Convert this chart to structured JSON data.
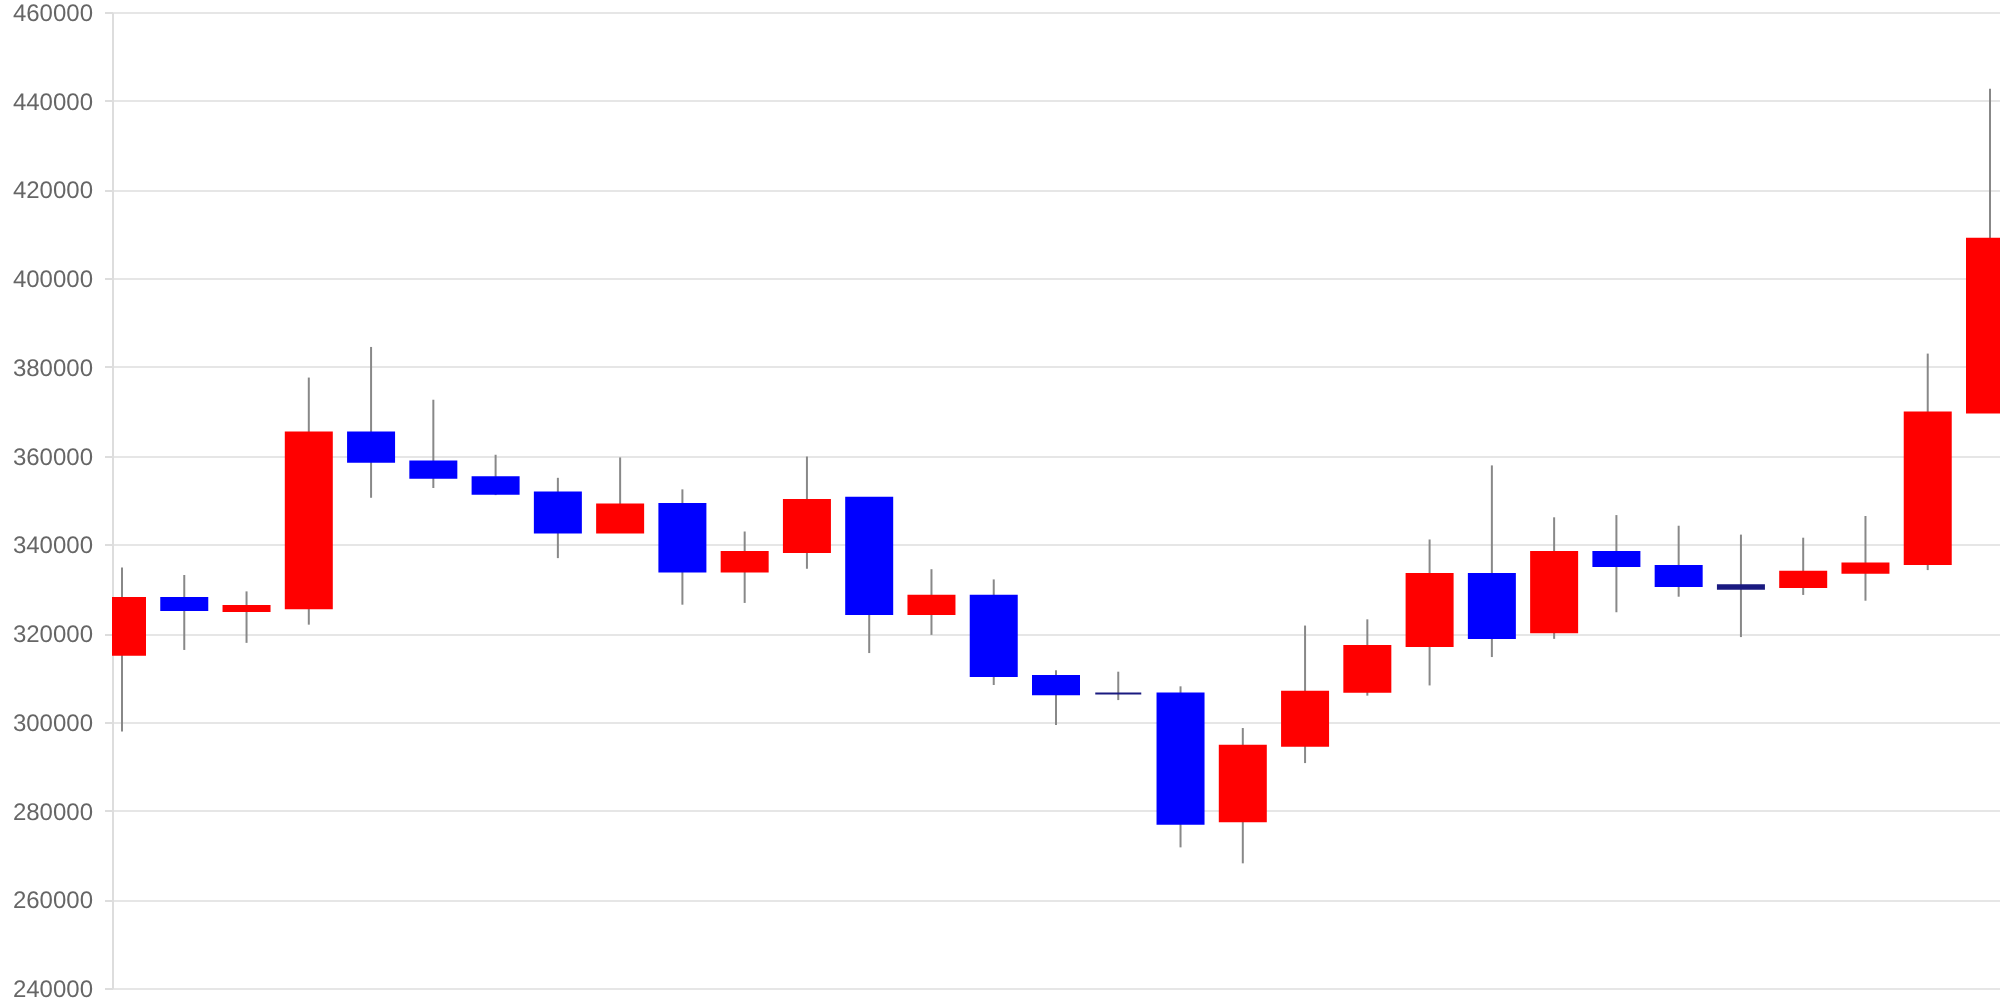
{
  "chart_data": {
    "type": "candlestick",
    "categories": [
      null,
      null,
      null,
      null,
      null,
      null,
      null,
      null,
      null,
      null,
      null,
      null,
      null,
      null,
      null,
      null,
      null,
      null,
      null,
      null,
      null,
      null,
      null,
      null,
      null,
      null,
      null,
      null,
      null,
      null,
      null
    ],
    "ohlc": [
      [
        315100,
        334800,
        297800,
        327900
      ],
      [
        327900,
        333100,
        316200,
        325200
      ],
      [
        325000,
        329400,
        317800,
        326100
      ],
      [
        325600,
        377600,
        321900,
        365200
      ],
      [
        365200,
        384500,
        350500,
        358600
      ],
      [
        358700,
        372600,
        352700,
        355000
      ],
      [
        355100,
        360200,
        351100,
        351400
      ],
      [
        351700,
        355000,
        336900,
        342700
      ],
      [
        342700,
        359600,
        342700,
        349000
      ],
      [
        349100,
        352400,
        326400,
        333900
      ],
      [
        333900,
        342900,
        326800,
        338300
      ],
      [
        338300,
        359800,
        334500,
        350000
      ],
      [
        350500,
        350500,
        315500,
        324300
      ],
      [
        324300,
        334400,
        319600,
        328400
      ],
      [
        328400,
        332100,
        308300,
        310300
      ],
      [
        310300,
        311600,
        299300,
        306200
      ],
      [
        306400,
        311300,
        304900,
        306400
      ],
      [
        306400,
        308000,
        271700,
        277000
      ],
      [
        277600,
        298600,
        268100,
        294600
      ],
      [
        294600,
        321700,
        290700,
        306800
      ],
      [
        306800,
        323100,
        305900,
        317100
      ],
      [
        317100,
        341100,
        308200,
        333300
      ],
      [
        333300,
        357800,
        314600,
        318900
      ],
      [
        320200,
        346100,
        318700,
        338300
      ],
      [
        338300,
        346600,
        324700,
        335100
      ],
      [
        335100,
        344200,
        328200,
        330600
      ],
      [
        330800,
        342200,
        319100,
        330000
      ],
      [
        330400,
        341500,
        328600,
        333800
      ],
      [
        333600,
        346400,
        327300,
        335700
      ],
      [
        335600,
        383000,
        334200,
        369700
      ],
      [
        369700,
        442700,
        369700,
        408900
      ]
    ],
    "colors": [
      "#ff0000",
      "#0000ff",
      "#ff0000",
      "#ff0000",
      "#0000ff",
      "#0000ff",
      "#0000ff",
      "#0000ff",
      "#ff0000",
      "#0000ff",
      "#ff0000",
      "#ff0000",
      "#0000ff",
      "#ff0000",
      "#0000ff",
      "#0000ff",
      "#1a1a80",
      "#0000ff",
      "#ff0000",
      "#ff0000",
      "#ff0000",
      "#ff0000",
      "#0000ff",
      "#ff0000",
      "#0000ff",
      "#0000ff",
      "#1a1a80",
      "#ff0000",
      "#ff0000",
      "#ff0000",
      "#ff0000"
    ],
    "ylim": [
      240000,
      460000
    ],
    "yticks": [
      240000,
      260000,
      280000,
      300000,
      320000,
      340000,
      360000,
      380000,
      400000,
      420000,
      440000,
      460000
    ],
    "grid": "y",
    "tick_labels": "y"
  }
}
